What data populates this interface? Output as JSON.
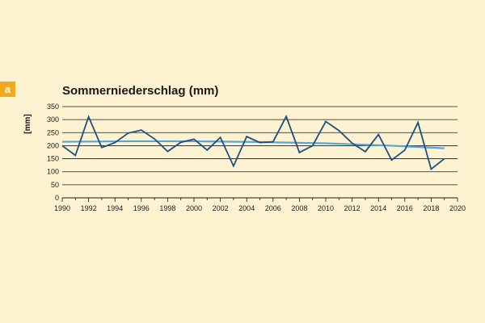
{
  "panel_label": "a",
  "chart_data": {
    "type": "line",
    "title": "Sommerniederschlag (mm)",
    "xlabel": "",
    "ylabel": "[mm]",
    "xlim": [
      1990,
      2020
    ],
    "ylim": [
      0,
      350
    ],
    "x_ticks": [
      1990,
      1992,
      1994,
      1996,
      1998,
      2000,
      2002,
      2004,
      2006,
      2008,
      2010,
      2012,
      2014,
      2016,
      2018,
      2020
    ],
    "y_ticks": [
      0,
      50,
      100,
      150,
      200,
      250,
      300,
      350
    ],
    "grid": "horizontal",
    "colors": {
      "series": "#1f4f82",
      "trend": "#5aa5d4",
      "grid": "#1a1a1a",
      "background": "#fdf3d0",
      "badge": "#f3a91c"
    },
    "series": [
      {
        "x": [
          1990,
          1991,
          1992,
          1993,
          1994,
          1995,
          1996,
          1997,
          1998,
          1999,
          2000,
          2001,
          2002,
          2003,
          2004,
          2005,
          2006,
          2007,
          2008,
          2009,
          2010,
          2011,
          2012,
          2013,
          2014,
          2015,
          2016,
          2017,
          2018,
          2019
        ],
        "values": [
          200,
          163,
          311,
          193,
          212,
          248,
          260,
          226,
          178,
          213,
          225,
          183,
          232,
          122,
          235,
          212,
          215,
          312,
          174,
          200,
          293,
          258,
          210,
          177,
          243,
          145,
          183,
          289,
          110,
          150
        ]
      },
      {
        "x": [
          1990,
          1995,
          2000,
          2005,
          2010,
          2015,
          2019
        ],
        "values": [
          215,
          217,
          217,
          214,
          209,
          200,
          190
        ]
      }
    ]
  }
}
